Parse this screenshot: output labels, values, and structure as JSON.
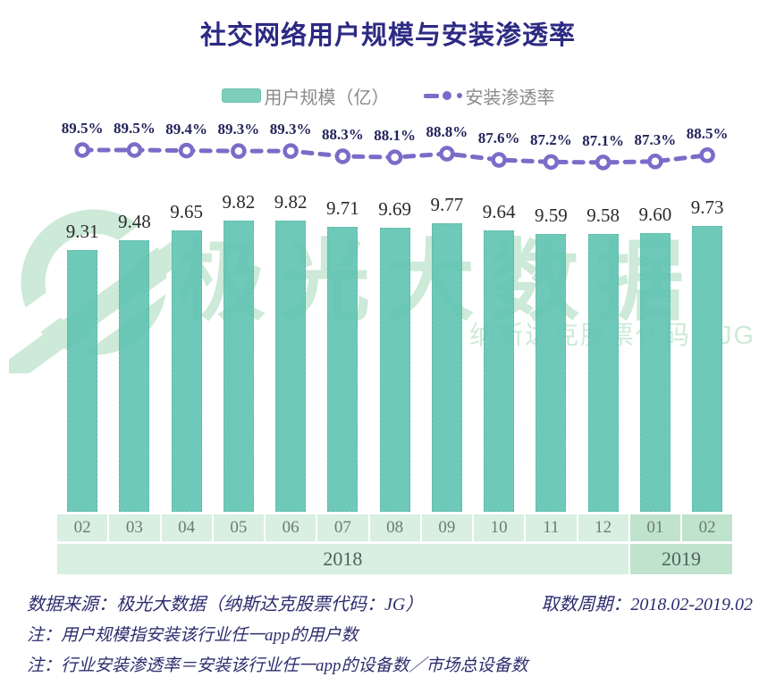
{
  "title": "社交网络用户规模与安装渗透率",
  "legend": {
    "bar_label": "用户规模（亿）",
    "line_label": "安装渗透率"
  },
  "chart_data": {
    "type": "bar+line",
    "title": "社交网络用户规模与安装渗透率",
    "categories": [
      "02",
      "03",
      "04",
      "05",
      "06",
      "07",
      "08",
      "09",
      "10",
      "11",
      "12",
      "01",
      "02"
    ],
    "year_groups": [
      {
        "label": "2018",
        "span": 11
      },
      {
        "label": "2019",
        "span": 2
      }
    ],
    "series": [
      {
        "name": "用户规模（亿）",
        "type": "bar",
        "values": [
          9.31,
          9.48,
          9.65,
          9.82,
          9.82,
          9.71,
          9.69,
          9.77,
          9.64,
          9.59,
          9.58,
          9.6,
          9.73
        ]
      },
      {
        "name": "安装渗透率",
        "type": "line",
        "unit": "%",
        "values": [
          89.5,
          89.5,
          89.4,
          89.3,
          89.3,
          88.3,
          88.1,
          88.8,
          87.6,
          87.2,
          87.1,
          87.3,
          88.5
        ]
      }
    ],
    "value_labels_shown": true,
    "axes_hidden": true,
    "legend_position": "top"
  },
  "colors": {
    "bar": "#6fc9b9",
    "line": "#7a6cc8",
    "title": "#2c2a83",
    "percent_label": "#24245c",
    "bar_label": "#2b2b2b",
    "band_2018": "#d8efe1",
    "band_2019": "#bfe3cd",
    "watermark": "#cde9d8"
  },
  "watermark": {
    "logo": "jiguang-logo",
    "brand_text": "极光大数据",
    "sub_text": "纳斯达克股票代码：JG"
  },
  "footer": {
    "source": "数据来源：极光大数据（纳斯达克股票代码：JG）",
    "period": "取数周期：2018.02-2019.02",
    "note1": "注：用户规模指安装该行业任一app的用户数",
    "note2": "注：行业安装渗透率＝安装该行业任一app的设备数／市场总设备数"
  }
}
